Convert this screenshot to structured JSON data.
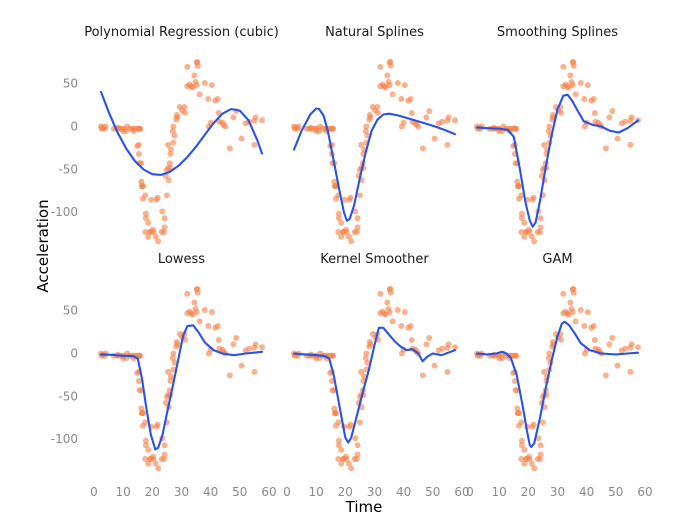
{
  "chart_data": {
    "type": "scatter",
    "xlabel": "Time",
    "ylabel": "Acceleration",
    "x_ticks": [
      "0",
      "10",
      "20",
      "30",
      "40",
      "50",
      "60"
    ],
    "y_ticks": [
      "50",
      "0",
      "-50",
      "-100"
    ],
    "xlim": [
      0,
      60
    ],
    "ylim": [
      -136,
      80
    ],
    "grid": false,
    "colors": {
      "points": "#f4824a",
      "line": "#2753e8"
    },
    "points": {
      "x": [
        2.4,
        2.6,
        3.2,
        3.6,
        4.0,
        6.8,
        7.8,
        8.2,
        8.6,
        9.6,
        10.0,
        10.2,
        11.0,
        11.4,
        12.2,
        13.2,
        13.6,
        13.8,
        14.6,
        14.8,
        15.4,
        15.4,
        15.4,
        15.6,
        15.6,
        15.8,
        16.2,
        16.2,
        16.4,
        16.6,
        16.8,
        16.8,
        17.6,
        17.6,
        17.8,
        17.8,
        18.6,
        18.6,
        19.2,
        19.4,
        19.6,
        20.2,
        20.4,
        21.2,
        21.4,
        21.8,
        22.0,
        23.2,
        23.4,
        24.0,
        24.2,
        24.2,
        24.6,
        25.0,
        25.0,
        25.4,
        25.4,
        25.6,
        26.0,
        26.2,
        26.2,
        26.4,
        27.0,
        27.2,
        27.2,
        27.6,
        28.2,
        28.4,
        28.6,
        29.4,
        30.2,
        31.0,
        31.2,
        32.0,
        32.0,
        32.8,
        33.4,
        33.8,
        34.4,
        34.8,
        35.2,
        35.2,
        35.4,
        35.6,
        36.2,
        38.0,
        39.2,
        39.4,
        40.0,
        40.4,
        41.6,
        42.4,
        42.8,
        43.0,
        44.0,
        44.4,
        45.0,
        46.6,
        47.8,
        48.8,
        50.6,
        52.0,
        53.2,
        55.0,
        55.0,
        55.4,
        57.6
      ],
      "y": [
        0.0,
        -2.7,
        -1.3,
        -2.7,
        0.0,
        -2.7,
        -2.7,
        -1.3,
        -2.7,
        -2.7,
        -5.4,
        -2.7,
        -5.4,
        0.0,
        -2.7,
        -2.7,
        -5.4,
        -2.7,
        -2.7,
        -22.8,
        -21.5,
        -2.7,
        -32.1,
        -2.7,
        -42.9,
        -2.7,
        -42.9,
        -64.3,
        -69.6,
        -69.6,
        -69.6,
        -84.3,
        -123.1,
        -80.4,
        -101.9,
        -107.2,
        -128.5,
        -112.5,
        -123.1,
        -123.1,
        -85.6,
        -120.5,
        -123.1,
        -128.5,
        -85.6,
        -83.0,
        -134.0,
        -123.1,
        -99.1,
        -123.1,
        -107.2,
        -117.9,
        -57.6,
        -80.4,
        -50.8,
        -48.4,
        -21.5,
        -62.6,
        -42.9,
        -48.4,
        -32.1,
        -26.8,
        -5.4,
        -18.8,
        0.0,
        -10.7,
        8.1,
        13.4,
        10.7,
        22.8,
        18.8,
        22.8,
        16.1,
        46.9,
        69.6,
        49.0,
        46.6,
        45.6,
        59.6,
        52.0,
        74.7,
        48.4,
        75.4,
        71.0,
        37.5,
        50.8,
        32.1,
        0.0,
        4.6,
        48.4,
        30.0,
        32.1,
        15.8,
        5.5,
        4.6,
        2.0,
        0.0,
        -25.6,
        10.7,
        18.1,
        -14.1,
        3.6,
        5.5,
        6.8,
        -21.5,
        10.7,
        7.4
      ]
    },
    "panels": [
      {
        "title": "Polynomial Regression (cubic)",
        "line": [
          [
            2.4,
            40.4
          ],
          [
            5.0,
            17.2
          ],
          [
            8.0,
            -6.4
          ],
          [
            11.0,
            -25.6
          ],
          [
            14.0,
            -40.2
          ],
          [
            17.0,
            -50.2
          ],
          [
            20.0,
            -55.7
          ],
          [
            23.0,
            -56.5
          ],
          [
            26.0,
            -53.0
          ],
          [
            29.0,
            -45.8
          ],
          [
            32.0,
            -35.7
          ],
          [
            35.0,
            -23.5
          ],
          [
            38.0,
            -9.6
          ],
          [
            41.0,
            4.0
          ],
          [
            44.0,
            14.8
          ],
          [
            47.0,
            20.4
          ],
          [
            50.0,
            18.6
          ],
          [
            53.0,
            7.1
          ],
          [
            56.0,
            -16.0
          ],
          [
            57.6,
            -31.5
          ]
        ]
      },
      {
        "title": "Natural Splines",
        "line": [
          [
            2.4,
            -27.0
          ],
          [
            5.0,
            -5.0
          ],
          [
            8.0,
            14.0
          ],
          [
            10.0,
            21.0
          ],
          [
            11.0,
            20.5
          ],
          [
            12.5,
            13.0
          ],
          [
            14.0,
            -5.0
          ],
          [
            16.0,
            -40.0
          ],
          [
            18.0,
            -75.0
          ],
          [
            19.5,
            -100.0
          ],
          [
            20.5,
            -110.0
          ],
          [
            21.5,
            -108.0
          ],
          [
            23.0,
            -92.0
          ],
          [
            25.0,
            -60.0
          ],
          [
            27.0,
            -30.0
          ],
          [
            29.0,
            -5.0
          ],
          [
            31.0,
            8.0
          ],
          [
            33.0,
            14.0
          ],
          [
            35.0,
            15.0
          ],
          [
            38.0,
            13.0
          ],
          [
            42.0,
            9.0
          ],
          [
            46.0,
            5.0
          ],
          [
            50.0,
            1.0
          ],
          [
            54.0,
            -4.0
          ],
          [
            57.6,
            -9.0
          ]
        ]
      },
      {
        "title": "Smoothing Splines",
        "line": [
          [
            2.4,
            -1.0
          ],
          [
            6.0,
            -2.0
          ],
          [
            10.0,
            -2.5
          ],
          [
            13.0,
            -4.0
          ],
          [
            15.0,
            -12.0
          ],
          [
            17.0,
            -48.0
          ],
          [
            19.0,
            -88.0
          ],
          [
            20.5,
            -110.0
          ],
          [
            21.5,
            -117.0
          ],
          [
            22.5,
            -112.0
          ],
          [
            24.0,
            -87.0
          ],
          [
            26.0,
            -47.0
          ],
          [
            28.0,
            -10.0
          ],
          [
            30.0,
            20.0
          ],
          [
            32.0,
            36.0
          ],
          [
            33.5,
            37.0
          ],
          [
            35.0,
            30.0
          ],
          [
            37.0,
            18.0
          ],
          [
            39.0,
            6.0
          ],
          [
            42.0,
            2.0
          ],
          [
            45.0,
            0.0
          ],
          [
            48.0,
            -5.0
          ],
          [
            51.0,
            -7.0
          ],
          [
            54.0,
            -2.0
          ],
          [
            57.6,
            7.0
          ]
        ]
      },
      {
        "title": "Lowess",
        "line": [
          [
            2.4,
            -1.0
          ],
          [
            6.0,
            -1.5
          ],
          [
            10.0,
            -2.5
          ],
          [
            13.5,
            -3.0
          ],
          [
            15.0,
            -6.0
          ],
          [
            16.5,
            -30.0
          ],
          [
            18.0,
            -65.0
          ],
          [
            19.5,
            -95.0
          ],
          [
            21.0,
            -112.0
          ],
          [
            22.0,
            -110.0
          ],
          [
            23.5,
            -95.0
          ],
          [
            25.0,
            -70.0
          ],
          [
            27.0,
            -38.0
          ],
          [
            29.0,
            -5.0
          ],
          [
            30.5,
            20.0
          ],
          [
            32.0,
            32.0
          ],
          [
            34.0,
            33.0
          ],
          [
            36.0,
            24.0
          ],
          [
            38.0,
            13.0
          ],
          [
            41.0,
            4.0
          ],
          [
            44.0,
            0.0
          ],
          [
            48.0,
            -2.0
          ],
          [
            52.0,
            0.0
          ],
          [
            57.6,
            2.0
          ]
        ]
      },
      {
        "title": "Kernel Smoother",
        "line": [
          [
            2.4,
            0.0
          ],
          [
            6.0,
            -1.0
          ],
          [
            10.0,
            -2.0
          ],
          [
            13.0,
            -3.0
          ],
          [
            14.5,
            -6.0
          ],
          [
            16.0,
            -25.0
          ],
          [
            17.5,
            -52.0
          ],
          [
            19.0,
            -80.0
          ],
          [
            20.0,
            -98.0
          ],
          [
            21.0,
            -104.0
          ],
          [
            22.0,
            -98.0
          ],
          [
            24.0,
            -72.0
          ],
          [
            26.0,
            -45.0
          ],
          [
            28.0,
            -20.0
          ],
          [
            30.0,
            10.0
          ],
          [
            31.5,
            30.0
          ],
          [
            33.0,
            30.0
          ],
          [
            35.0,
            22.0
          ],
          [
            37.0,
            14.0
          ],
          [
            39.0,
            8.0
          ],
          [
            41.0,
            4.0
          ],
          [
            43.0,
            5.0
          ],
          [
            45.0,
            0.0
          ],
          [
            46.5,
            -9.0
          ],
          [
            48.0,
            -4.0
          ],
          [
            50.0,
            0.0
          ],
          [
            53.0,
            -2.0
          ],
          [
            57.6,
            4.0
          ]
        ]
      },
      {
        "title": "GAM",
        "line": [
          [
            2.4,
            0.0
          ],
          [
            6.0,
            -1.0
          ],
          [
            9.0,
            0.0
          ],
          [
            11.0,
            2.0
          ],
          [
            12.5,
            0.0
          ],
          [
            14.0,
            -5.0
          ],
          [
            16.0,
            -25.0
          ],
          [
            18.0,
            -60.0
          ],
          [
            19.5,
            -90.0
          ],
          [
            20.5,
            -107.0
          ],
          [
            21.0,
            -109.0
          ],
          [
            22.0,
            -105.0
          ],
          [
            24.0,
            -75.0
          ],
          [
            26.0,
            -40.0
          ],
          [
            28.0,
            -8.0
          ],
          [
            30.0,
            20.0
          ],
          [
            31.5,
            35.0
          ],
          [
            32.5,
            37.0
          ],
          [
            34.0,
            33.0
          ],
          [
            36.0,
            23.0
          ],
          [
            38.0,
            12.0
          ],
          [
            41.0,
            4.0
          ],
          [
            45.0,
            0.0
          ],
          [
            50.0,
            -1.0
          ],
          [
            54.0,
            0.0
          ],
          [
            57.6,
            1.0
          ]
        ]
      }
    ]
  }
}
